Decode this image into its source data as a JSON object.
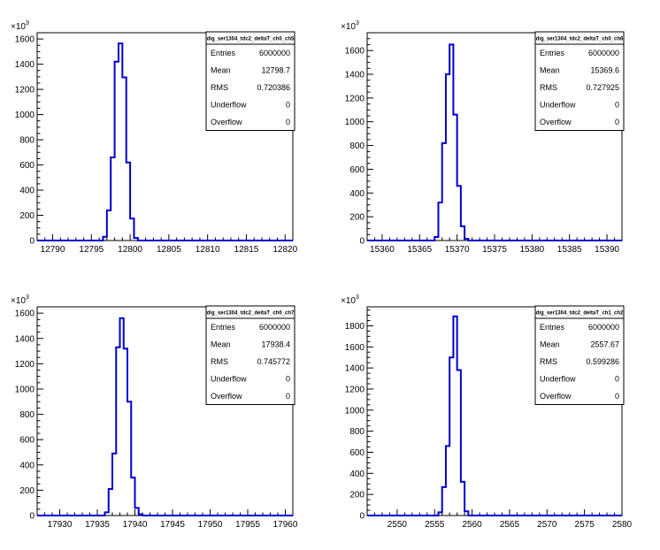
{
  "chart_data": [
    {
      "type": "bar",
      "y_multiplier_label": "×10",
      "y_multiplier_exp": "3",
      "xlim": [
        12788,
        12821
      ],
      "ylim": [
        0,
        1650
      ],
      "x_ticks": [
        "12790",
        "12795",
        "12800",
        "12805",
        "12810",
        "12815",
        "12820"
      ],
      "y_ticks": [
        "0",
        "200",
        "400",
        "600",
        "800",
        "1000",
        "1200",
        "1400",
        "1600"
      ],
      "bin_width": 0.5,
      "bins": [
        {
          "x": 12796.5,
          "y": 30
        },
        {
          "x": 12797.0,
          "y": 240
        },
        {
          "x": 12797.5,
          "y": 660
        },
        {
          "x": 12798.0,
          "y": 1420
        },
        {
          "x": 12798.5,
          "y": 1565
        },
        {
          "x": 12799.0,
          "y": 1295
        },
        {
          "x": 12799.5,
          "y": 620
        },
        {
          "x": 12800.0,
          "y": 175
        },
        {
          "x": 12800.5,
          "y": 20
        }
      ],
      "stats": {
        "title": "dig_ser1304_tdc2_deltaT_ch0_ch5",
        "rows": [
          {
            "label": "Entries",
            "value": "6000000"
          },
          {
            "label": "Mean",
            "value": "12798.7"
          },
          {
            "label": "RMS",
            "value": "0.720386"
          },
          {
            "label": "Underflow",
            "value": "0"
          },
          {
            "label": "Overflow",
            "value": "0"
          }
        ]
      }
    },
    {
      "type": "bar",
      "y_multiplier_label": "×10",
      "y_multiplier_exp": "3",
      "xlim": [
        15358,
        15392
      ],
      "ylim": [
        0,
        1750
      ],
      "x_ticks": [
        "15360",
        "15365",
        "15370",
        "15375",
        "15380",
        "15385",
        "15390"
      ],
      "y_ticks": [
        "0",
        "200",
        "400",
        "600",
        "800",
        "1000",
        "1200",
        "1400",
        "1600"
      ],
      "bin_width": 0.5,
      "bins": [
        {
          "x": 15367.0,
          "y": 30
        },
        {
          "x": 15367.5,
          "y": 320
        },
        {
          "x": 15368.0,
          "y": 820
        },
        {
          "x": 15368.5,
          "y": 1400
        },
        {
          "x": 15369.0,
          "y": 1650
        },
        {
          "x": 15369.5,
          "y": 1060
        },
        {
          "x": 15370.0,
          "y": 460
        },
        {
          "x": 15370.5,
          "y": 120
        },
        {
          "x": 15371.0,
          "y": 15
        }
      ],
      "stats": {
        "title": "dig_ser1304_tdc2_deltaT_ch0_ch6",
        "rows": [
          {
            "label": "Entries",
            "value": "6000000"
          },
          {
            "label": "Mean",
            "value": "15369.6"
          },
          {
            "label": "RMS",
            "value": "0.727925"
          },
          {
            "label": "Underflow",
            "value": "0"
          },
          {
            "label": "Overflow",
            "value": "0"
          }
        ]
      }
    },
    {
      "type": "bar",
      "y_multiplier_label": "×10",
      "y_multiplier_exp": "3",
      "xlim": [
        17927,
        17961
      ],
      "ylim": [
        0,
        1650
      ],
      "x_ticks": [
        "17930",
        "17935",
        "17940",
        "17945",
        "17950",
        "17955",
        "17960"
      ],
      "y_ticks": [
        "0",
        "200",
        "400",
        "600",
        "800",
        "1000",
        "1200",
        "1400",
        "1600"
      ],
      "bin_width": 0.5,
      "bins": [
        {
          "x": 17936.0,
          "y": 25
        },
        {
          "x": 17936.5,
          "y": 210
        },
        {
          "x": 17937.0,
          "y": 490
        },
        {
          "x": 17937.5,
          "y": 1330
        },
        {
          "x": 17938.0,
          "y": 1560
        },
        {
          "x": 17938.5,
          "y": 1320
        },
        {
          "x": 17939.0,
          "y": 900
        },
        {
          "x": 17939.5,
          "y": 300
        },
        {
          "x": 17940.0,
          "y": 60
        },
        {
          "x": 17940.5,
          "y": 10
        }
      ],
      "stats": {
        "title": "dig_ser1304_tdc2_deltaT_ch0_ch7",
        "rows": [
          {
            "label": "Entries",
            "value": "6000000"
          },
          {
            "label": "Mean",
            "value": "17938.4"
          },
          {
            "label": "RMS",
            "value": "0.745772"
          },
          {
            "label": "Underflow",
            "value": "0"
          },
          {
            "label": "Overflow",
            "value": "0"
          }
        ]
      }
    },
    {
      "type": "bar",
      "y_multiplier_label": "×10",
      "y_multiplier_exp": "3",
      "xlim": [
        2546,
        2580
      ],
      "ylim": [
        0,
        1980
      ],
      "x_ticks": [
        "2550",
        "2555",
        "2560",
        "2565",
        "2570",
        "2575",
        "2580"
      ],
      "y_ticks": [
        "0",
        "200",
        "400",
        "600",
        "800",
        "1000",
        "1200",
        "1400",
        "1600",
        "1800"
      ],
      "bin_width": 0.5,
      "bins": [
        {
          "x": 2555.5,
          "y": 30
        },
        {
          "x": 2556.0,
          "y": 270
        },
        {
          "x": 2556.5,
          "y": 660
        },
        {
          "x": 2557.0,
          "y": 1500
        },
        {
          "x": 2557.5,
          "y": 1890
        },
        {
          "x": 2558.0,
          "y": 1380
        },
        {
          "x": 2558.5,
          "y": 320
        },
        {
          "x": 2559.0,
          "y": 40
        }
      ],
      "stats": {
        "title": "dig_ser1304_tdc2_deltaT_ch1_ch2",
        "rows": [
          {
            "label": "Entries",
            "value": "6000000"
          },
          {
            "label": "Mean",
            "value": "2557.67"
          },
          {
            "label": "RMS",
            "value": "0.599286"
          },
          {
            "label": "Underflow",
            "value": "0"
          },
          {
            "label": "Overflow",
            "value": "0"
          }
        ]
      }
    }
  ],
  "colors": {
    "histogram_line": "#0000cc",
    "axis": "#000000",
    "background": "#ffffff"
  }
}
